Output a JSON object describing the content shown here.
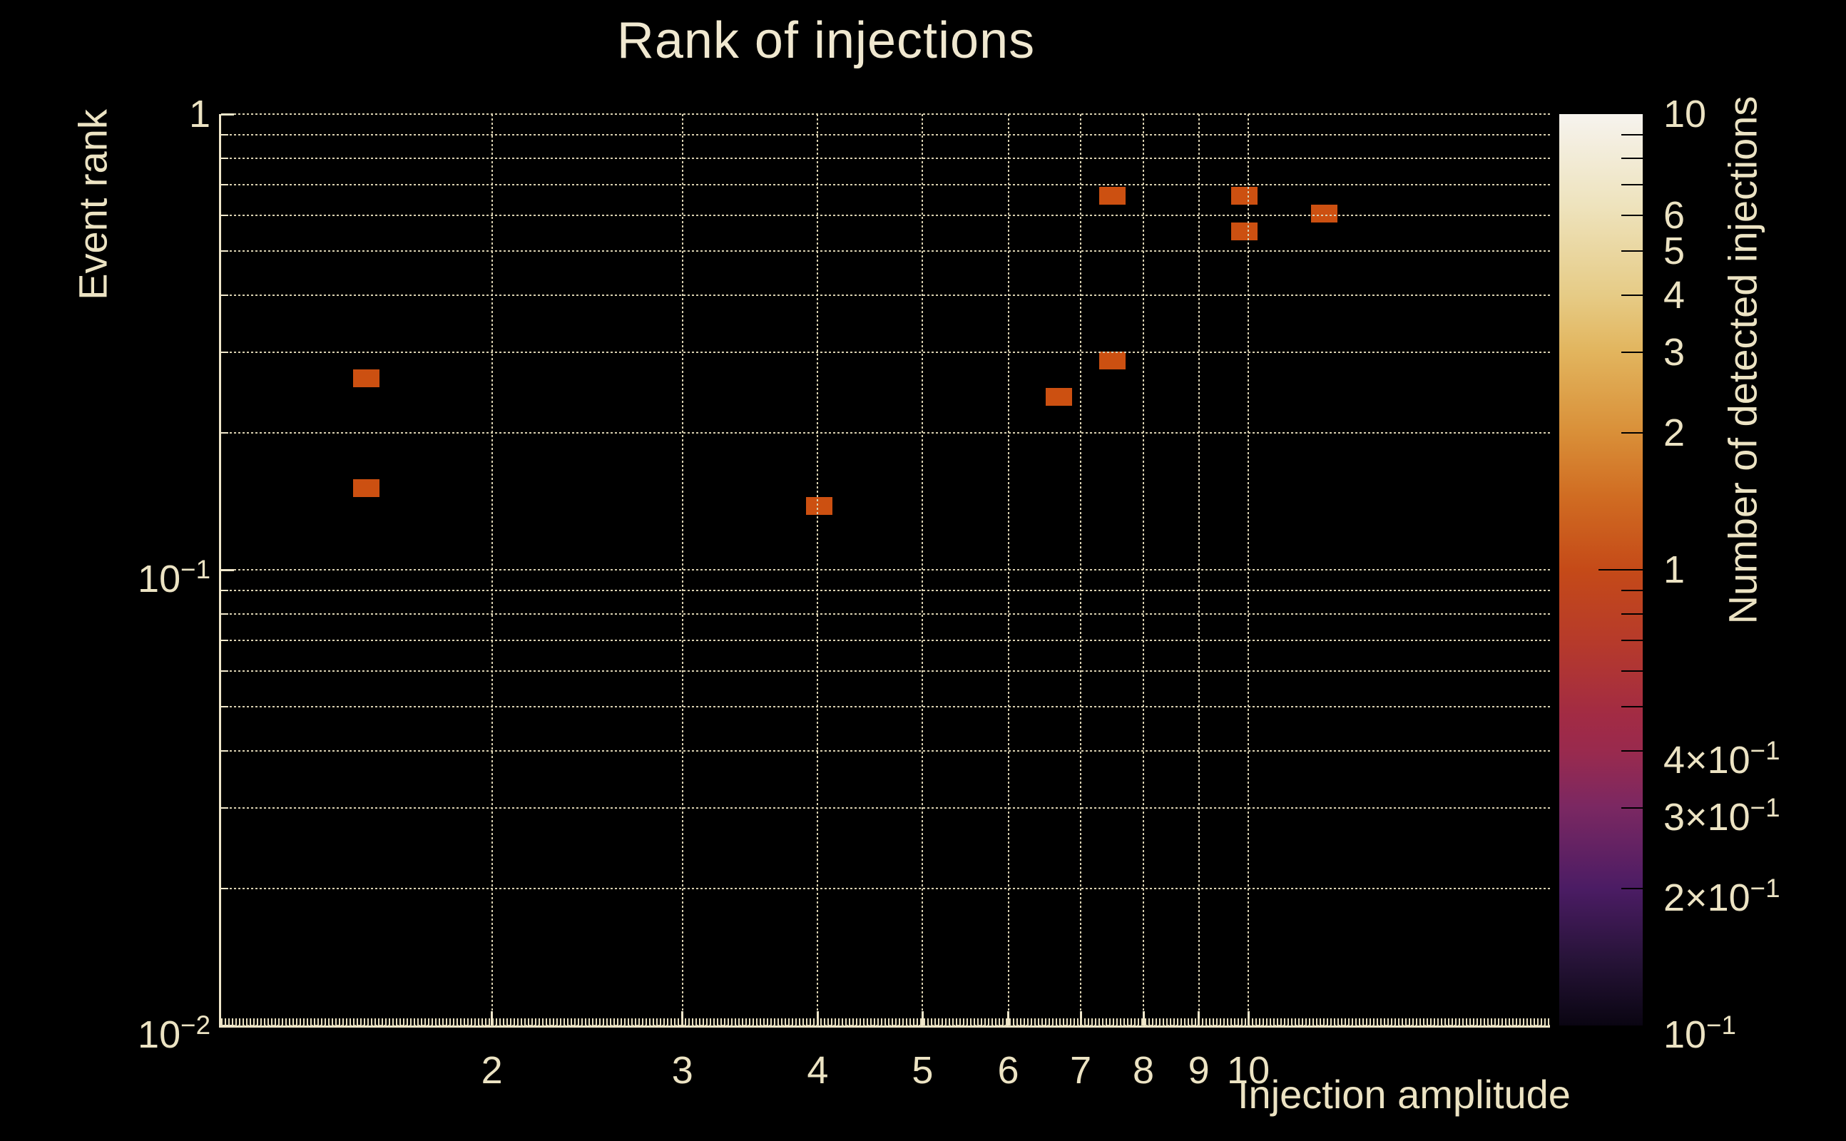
{
  "chart_data": {
    "type": "heatmap",
    "title": "Rank of injections",
    "xlabel": "Injection amplitude",
    "ylabel": "Event rank",
    "colorbar_label": "Number of detected injections",
    "xscale": "log",
    "yscale": "log",
    "zscale": "log",
    "xlim": [
      1.124,
      19.0
    ],
    "ylim": [
      0.01,
      1.0
    ],
    "zlim": [
      0.1,
      10
    ],
    "grid": true,
    "x_major_ticks": [
      {
        "v": 2,
        "text": "2"
      },
      {
        "v": 3,
        "text": "3"
      },
      {
        "v": 4,
        "text": "4"
      },
      {
        "v": 5,
        "text": "5"
      },
      {
        "v": 6,
        "text": "6"
      },
      {
        "v": 7,
        "text": "7"
      },
      {
        "v": 8,
        "text": "8"
      },
      {
        "v": 9,
        "text": "9"
      },
      {
        "v": 10,
        "text": "10"
      }
    ],
    "y_major_ticks": [
      {
        "v": 1,
        "text": "1",
        "exp": ""
      },
      {
        "v": 0.1,
        "text": "10",
        "exp": "−1"
      },
      {
        "v": 0.01,
        "text": "10",
        "exp": "−2"
      }
    ],
    "y_minor_ticks": [
      0.9,
      0.8,
      0.7,
      0.6,
      0.5,
      0.4,
      0.3,
      0.2,
      0.09,
      0.08,
      0.07,
      0.06,
      0.05,
      0.04,
      0.03,
      0.02
    ],
    "points": [
      {
        "x": 1.53,
        "y": 0.263,
        "count": 1
      },
      {
        "x": 1.53,
        "y": 0.151,
        "count": 1
      },
      {
        "x": 4.01,
        "y": 0.138,
        "count": 1
      },
      {
        "x": 6.68,
        "y": 0.24,
        "count": 1
      },
      {
        "x": 7.49,
        "y": 0.288,
        "count": 1
      },
      {
        "x": 7.49,
        "y": 0.663,
        "count": 1
      },
      {
        "x": 9.92,
        "y": 0.663,
        "count": 1
      },
      {
        "x": 9.92,
        "y": 0.552,
        "count": 1
      },
      {
        "x": 11.75,
        "y": 0.604,
        "count": 1
      }
    ],
    "colorbar": {
      "labeled_ticks": [
        {
          "v": 10,
          "text": "10",
          "exp": ""
        },
        {
          "v": 6,
          "text": "6",
          "exp": ""
        },
        {
          "v": 5,
          "text": "5",
          "exp": ""
        },
        {
          "v": 4,
          "text": "4",
          "exp": ""
        },
        {
          "v": 3,
          "text": "3",
          "exp": ""
        },
        {
          "v": 2,
          "text": "2",
          "exp": ""
        },
        {
          "v": 1,
          "text": "1",
          "exp": ""
        },
        {
          "v": 0.4,
          "text": "4×10",
          "exp": "−1"
        },
        {
          "v": 0.3,
          "text": "3×10",
          "exp": "−1"
        },
        {
          "v": 0.2,
          "text": "2×10",
          "exp": "−1"
        },
        {
          "v": 0.1,
          "text": "10",
          "exp": "−1"
        }
      ],
      "minor_ticks": [
        9,
        8,
        7,
        6,
        5,
        4,
        3,
        2,
        0.9,
        0.8,
        0.7,
        0.6,
        0.5,
        0.4,
        0.3,
        0.2
      ],
      "major_ticks": [
        1
      ],
      "gradient": [
        {
          "pos": 0.0,
          "color": "#f6f3ee"
        },
        {
          "pos": 0.1,
          "color": "#eee3bd"
        },
        {
          "pos": 0.2,
          "color": "#e6cb85"
        },
        {
          "pos": 0.26,
          "color": "#e2b55e"
        },
        {
          "pos": 0.35,
          "color": "#d98f38"
        },
        {
          "pos": 0.42,
          "color": "#d06c22"
        },
        {
          "pos": 0.5,
          "color": "#c54a18"
        },
        {
          "pos": 0.58,
          "color": "#b63a2b"
        },
        {
          "pos": 0.66,
          "color": "#a22b44"
        },
        {
          "pos": 0.7,
          "color": "#992a4e"
        },
        {
          "pos": 0.76,
          "color": "#7b2862"
        },
        {
          "pos": 0.85,
          "color": "#4b1c64"
        },
        {
          "pos": 0.93,
          "color": "#261337"
        },
        {
          "pos": 1.0,
          "color": "#0a0512"
        }
      ]
    },
    "colors": {
      "point": "#cc5011",
      "text": "#ece3c3",
      "grid": "#d9d0b0",
      "axis": "#f0e7cb",
      "background": "#000000"
    }
  }
}
